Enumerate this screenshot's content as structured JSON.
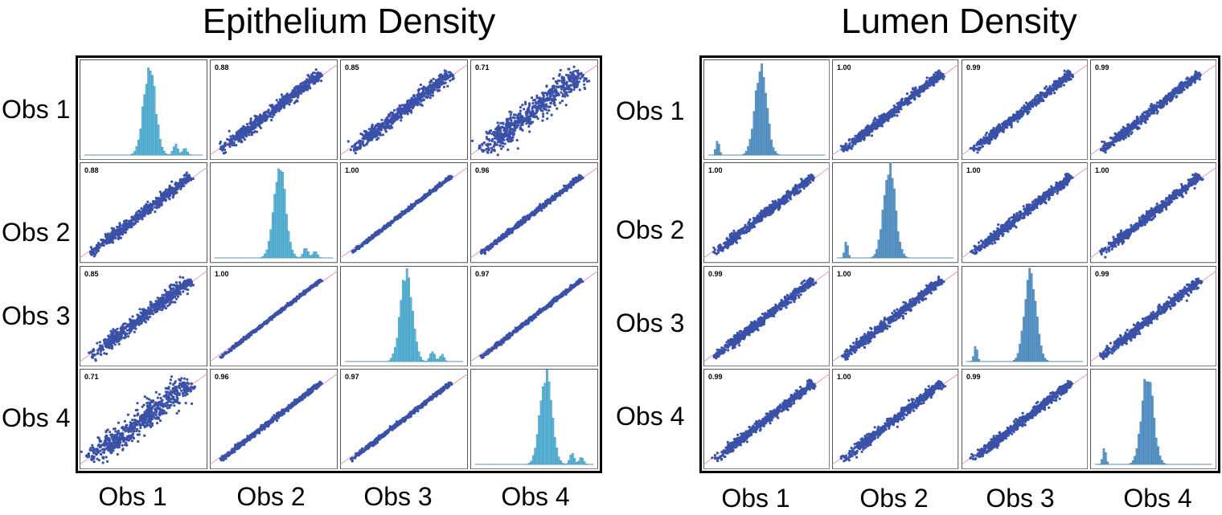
{
  "colors": {
    "scatter": "#3a51a8",
    "identity_line": "#e58aa8",
    "hist_fill_epithelium": "#5cb8d9",
    "hist_fill_lumen": "#5d96c9",
    "cell_border": "#555555"
  },
  "chart_data": [
    {
      "type": "scatter-matrix",
      "title": "Epithelium Density",
      "observers": [
        "Obs 1",
        "Obs 2",
        "Obs 3",
        "Obs 4"
      ],
      "diagonal": "histogram",
      "off_diagonal": "scatter with identity line",
      "correlation_labels": [
        [
          "",
          "0.88",
          "0.85",
          "0.71"
        ],
        [
          "0.88",
          "",
          "1.00",
          "0.96"
        ],
        [
          "0.85",
          "1.00",
          "",
          "0.97"
        ],
        [
          "0.71",
          "0.96",
          "0.97",
          ""
        ]
      ]
    },
    {
      "type": "scatter-matrix",
      "title": "Lumen Density",
      "observers": [
        "Obs 1",
        "Obs 2",
        "Obs 3",
        "Obs 4"
      ],
      "diagonal": "histogram",
      "off_diagonal": "scatter with identity line",
      "correlation_labels": [
        [
          "",
          "1.00",
          "0.99",
          "0.99"
        ],
        [
          "1.00",
          "",
          "1.00",
          "1.00"
        ],
        [
          "0.99",
          "1.00",
          "",
          "0.99"
        ],
        [
          "0.99",
          "1.00",
          "0.99",
          ""
        ]
      ]
    }
  ]
}
